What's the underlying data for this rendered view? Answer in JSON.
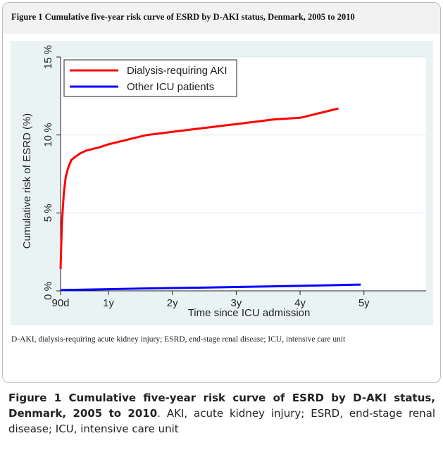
{
  "figure": {
    "header_title": "Figure 1 Cumulative five-year risk curve of ESRD by D-AKI status, Denmark, 2005 to 2010",
    "footnote": "D-AKI, dialysis-requiring acute kidney injury; ESRD, end-stage renal disease; ICU, intensive care unit"
  },
  "caption": {
    "bold_part": "Figure 1 Cumulative five-year risk curve of ESRD by D-AKI status, Denmark, 2005 to 2010",
    "rest": ". AKI, acute kidney injury; ESRD, end-stage renal disease; ICU, intensive care unit"
  },
  "chart_data": {
    "type": "line",
    "xlabel": "Time since ICU admission",
    "ylabel": "Cumulative risk of ESRD (%)",
    "xlim": [
      0.25,
      5
    ],
    "ylim": [
      0,
      15
    ],
    "x_ticks": [
      {
        "value": 0.25,
        "label": "90d"
      },
      {
        "value": 1,
        "label": "1y"
      },
      {
        "value": 2,
        "label": "2y"
      },
      {
        "value": 3,
        "label": "3y"
      },
      {
        "value": 4,
        "label": "4y"
      },
      {
        "value": 5,
        "label": "5y"
      }
    ],
    "y_ticks": [
      {
        "value": 0,
        "label": "0 %"
      },
      {
        "value": 5,
        "label": "5 %"
      },
      {
        "value": 10,
        "label": "10 %"
      },
      {
        "value": 15,
        "label": "15 %"
      }
    ],
    "grid": "horizontal",
    "legend_position": "top-left",
    "series": [
      {
        "name": "Dialysis-requiring AKI",
        "color": "#ff0000",
        "x": [
          0.25,
          0.27,
          0.3,
          0.33,
          0.37,
          0.42,
          0.48,
          0.55,
          0.65,
          0.75,
          0.85,
          1.0,
          1.2,
          1.4,
          1.6,
          1.8,
          2.0,
          2.2,
          2.4,
          2.6,
          2.8,
          3.0,
          3.2,
          3.4,
          3.6,
          3.8,
          4.0,
          4.2,
          4.4,
          4.6
        ],
        "y": [
          1.4,
          4.3,
          6.2,
          7.3,
          7.9,
          8.4,
          8.6,
          8.8,
          9.0,
          9.1,
          9.2,
          9.4,
          9.6,
          9.8,
          10.0,
          10.1,
          10.2,
          10.3,
          10.4,
          10.5,
          10.6,
          10.7,
          10.8,
          10.9,
          11.0,
          11.05,
          11.1,
          11.3,
          11.5,
          11.7
        ]
      },
      {
        "name": "Other ICU patients",
        "color": "#0000ff",
        "x": [
          0.25,
          0.5,
          1.0,
          1.5,
          2.0,
          2.5,
          3.0,
          3.5,
          4.0,
          4.5,
          4.95
        ],
        "y": [
          0.05,
          0.07,
          0.11,
          0.15,
          0.18,
          0.21,
          0.25,
          0.28,
          0.32,
          0.36,
          0.4
        ]
      }
    ]
  }
}
